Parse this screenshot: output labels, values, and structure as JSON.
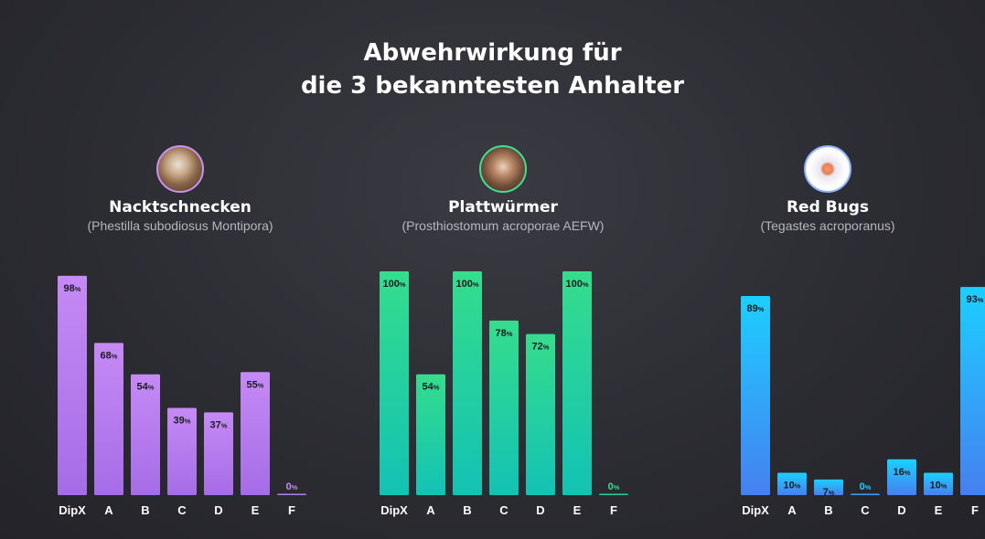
{
  "title": {
    "line1": "Abwehrwirkung für",
    "line2": "die 3 bekanntesten Anhalter"
  },
  "colors": {
    "background": "#2c2c33",
    "nacktschnecken_top": "#c68af5",
    "nacktschnecken_bottom": "#a56ce6",
    "plattwuermer_top": "#35dd8c",
    "plattwuermer_bottom": "#12c2b4",
    "redbugs_top": "#1ccfff",
    "redbugs_bottom": "#4680f0"
  },
  "panels": [
    {
      "name": "Nacktschnecken",
      "subtitle": "(Phestilla subodiosus Montipora)",
      "icon": "sea-slug-photo-icon",
      "ring_color": "#cf8ff2"
    },
    {
      "name": "Plattwürmer",
      "subtitle": "(Prosthiostomum acroporae AEFW)",
      "icon": "flatworm-photo-icon",
      "ring_color": "#3fe08f"
    },
    {
      "name": "Red Bugs",
      "subtitle": "(Tegastes acroporanus)",
      "icon": "red-bug-photo-icon",
      "ring_color": "#8fb0ff"
    }
  ],
  "chart_data": [
    {
      "type": "bar",
      "title": "Nacktschnecken",
      "categories": [
        "DipX",
        "A",
        "B",
        "C",
        "D",
        "E",
        "F"
      ],
      "values": [
        98,
        68,
        54,
        39,
        37,
        55,
        0
      ],
      "unit": "%",
      "ylim": [
        0,
        100
      ]
    },
    {
      "type": "bar",
      "title": "Plattwürmer",
      "categories": [
        "DipX",
        "A",
        "B",
        "C",
        "D",
        "E",
        "F"
      ],
      "values": [
        100,
        54,
        100,
        78,
        72,
        100,
        0
      ],
      "unit": "%",
      "ylim": [
        0,
        100
      ]
    },
    {
      "type": "bar",
      "title": "Red Bugs",
      "categories": [
        "DipX",
        "A",
        "B",
        "C",
        "D",
        "E",
        "F"
      ],
      "values": [
        89,
        10,
        7,
        0,
        16,
        10,
        93
      ],
      "unit": "%",
      "ylim": [
        0,
        100
      ]
    }
  ]
}
